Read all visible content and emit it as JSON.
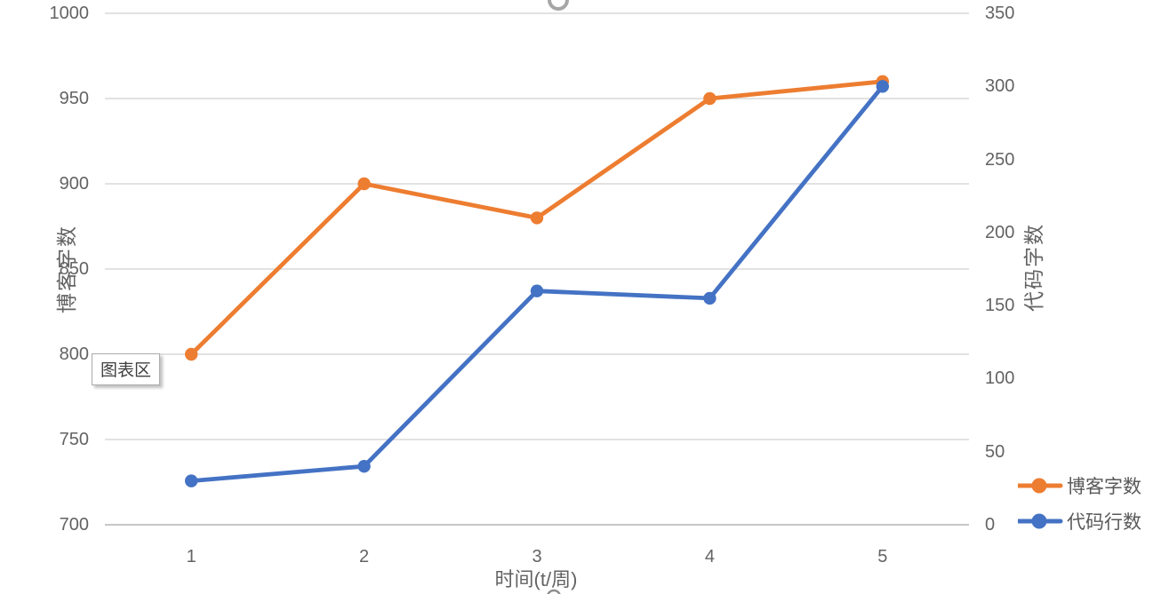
{
  "chart_data": {
    "type": "line",
    "categories": [
      "1",
      "2",
      "3",
      "4",
      "5"
    ],
    "series": [
      {
        "name": "博客字数",
        "axis": "left",
        "color": "#ED7D31",
        "values": [
          800,
          900,
          880,
          950,
          960
        ]
      },
      {
        "name": "代码行数",
        "axis": "right",
        "color": "#4472C4",
        "values": [
          30,
          40,
          160,
          155,
          300
        ]
      }
    ],
    "xlabel": "时间(t/周)",
    "ylabel_left": "博客字数",
    "ylabel_right": "代码字数",
    "ylim_left": [
      700,
      1000
    ],
    "ylim_right": [
      0,
      350
    ],
    "ytick_step_left": 50,
    "ytick_step_right": 50,
    "left_tick_labels": [
      "1000",
      "950",
      "900",
      "850",
      "800",
      "750",
      "700"
    ],
    "right_tick_labels": [
      "350",
      "300",
      "250",
      "200",
      "150",
      "100",
      "50",
      "0"
    ],
    "grid": true,
    "legend_position": "bottom-right",
    "legend": [
      {
        "label": "博客字数",
        "color": "#ED7D31"
      },
      {
        "label": "代码行数",
        "color": "#4472C4"
      }
    ]
  },
  "tooltip": {
    "text": "图表区"
  },
  "colors": {
    "gridline": "#D9D9D9",
    "axis_line": "#BFBFBF",
    "tick_text": "#636363",
    "series_blog_orange": "#ED7D31",
    "series_code_blue": "#4472C4",
    "remnant_gray": "#A6A6A6"
  },
  "glyphs": {
    "title_remnant": "partial-circle-bottom",
    "below_xaxis_handle": "partial-circle-top"
  }
}
